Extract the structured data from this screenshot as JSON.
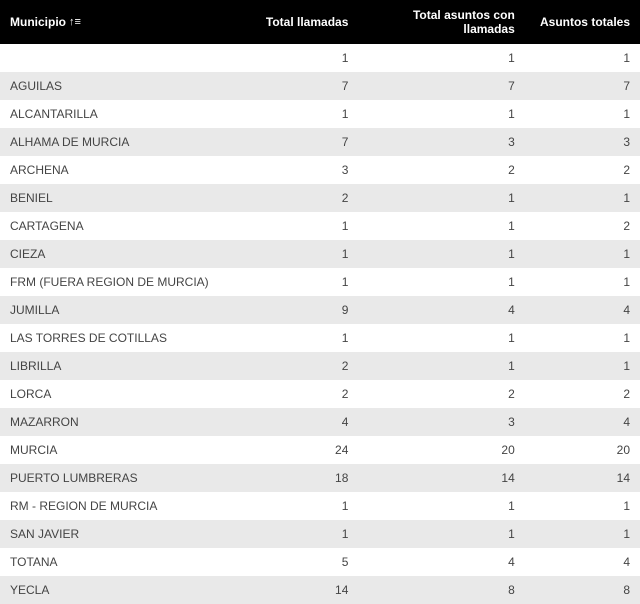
{
  "table": {
    "columns": [
      {
        "label": "Municipio",
        "align": "left",
        "sort": true
      },
      {
        "label": "Total llamadas",
        "align": "right",
        "sort": false
      },
      {
        "label": "Total asuntos con llamadas",
        "align": "right",
        "sort": false
      },
      {
        "label": "Asuntos totales",
        "align": "right",
        "sort": false
      }
    ],
    "sort_icon": "↑≡",
    "header_bg": "#000000",
    "header_fg": "#ffffff",
    "row_even_bg": "#e9e9e9",
    "row_odd_bg": "#ffffff",
    "text_color": "#444444",
    "font_size": 12,
    "rows": [
      [
        "",
        1,
        1,
        1
      ],
      [
        "AGUILAS",
        7,
        7,
        7
      ],
      [
        "ALCANTARILLA",
        1,
        1,
        1
      ],
      [
        "ALHAMA DE MURCIA",
        7,
        3,
        3
      ],
      [
        "ARCHENA",
        3,
        2,
        2
      ],
      [
        "BENIEL",
        2,
        1,
        1
      ],
      [
        "CARTAGENA",
        1,
        1,
        2
      ],
      [
        "CIEZA",
        1,
        1,
        1
      ],
      [
        "FRM (FUERA REGION DE MURCIA)",
        1,
        1,
        1
      ],
      [
        "JUMILLA",
        9,
        4,
        4
      ],
      [
        "LAS TORRES DE COTILLAS",
        1,
        1,
        1
      ],
      [
        "LIBRILLA",
        2,
        1,
        1
      ],
      [
        "LORCA",
        2,
        2,
        2
      ],
      [
        "MAZARRON",
        4,
        3,
        4
      ],
      [
        "MURCIA",
        24,
        20,
        20
      ],
      [
        "PUERTO LUMBRERAS",
        18,
        14,
        14
      ],
      [
        "RM - REGION DE MURCIA",
        1,
        1,
        1
      ],
      [
        "SAN JAVIER",
        1,
        1,
        1
      ],
      [
        "TOTANA",
        5,
        4,
        4
      ],
      [
        "YECLA",
        14,
        8,
        8
      ]
    ]
  }
}
